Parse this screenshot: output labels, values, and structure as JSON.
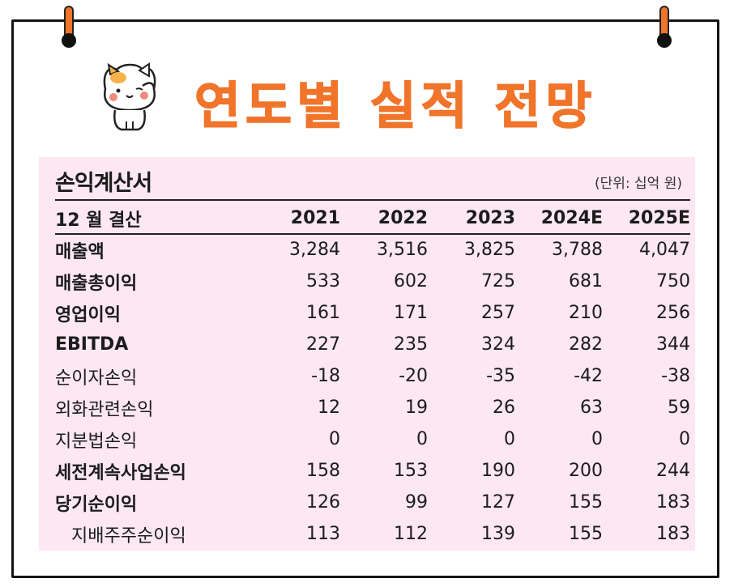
{
  "header": {
    "title": "연도별 실적 전망"
  },
  "statement": {
    "title": "손익계산서",
    "unit": "(단위: 십억 원)",
    "columns": [
      "12 월 결산",
      "2021",
      "2022",
      "2023",
      "2024E",
      "2025E"
    ],
    "rows": [
      {
        "label": "매출액",
        "bold": true,
        "values": [
          "3,284",
          "3,516",
          "3,825",
          "3,788",
          "4,047"
        ]
      },
      {
        "label": "매출총이익",
        "bold": true,
        "values": [
          "533",
          "602",
          "725",
          "681",
          "750"
        ]
      },
      {
        "label": "영업이익",
        "bold": true,
        "values": [
          "161",
          "171",
          "257",
          "210",
          "256"
        ]
      },
      {
        "label": "EBITDA",
        "bold": true,
        "values": [
          "227",
          "235",
          "324",
          "282",
          "344"
        ]
      },
      {
        "label": "순이자손익",
        "bold": false,
        "values": [
          "-18",
          "-20",
          "-35",
          "-42",
          "-38"
        ]
      },
      {
        "label": "외화관련손익",
        "bold": false,
        "values": [
          "12",
          "19",
          "26",
          "63",
          "59"
        ]
      },
      {
        "label": "지분법손익",
        "bold": false,
        "values": [
          "0",
          "0",
          "0",
          "0",
          "0"
        ]
      },
      {
        "label": "세전계속사업손익",
        "bold": true,
        "values": [
          "158",
          "153",
          "190",
          "200",
          "244"
        ]
      },
      {
        "label": "당기순이익",
        "bold": true,
        "values": [
          "126",
          "99",
          "127",
          "155",
          "183"
        ]
      },
      {
        "label": "지배주주순이익",
        "bold": false,
        "indent": true,
        "values": [
          "113",
          "112",
          "139",
          "155",
          "183"
        ]
      }
    ]
  },
  "colors": {
    "accent": "#f0742a",
    "panel": "#fce7f3",
    "border": "#141414"
  },
  "icons": {
    "mascot": "cat-mascot-icon",
    "rings": "binder-ring-icon"
  }
}
